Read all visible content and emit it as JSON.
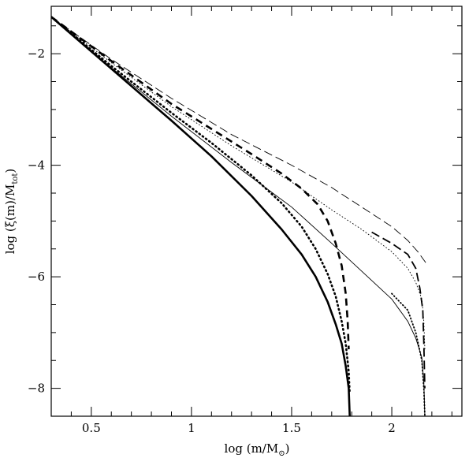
{
  "chart_data": {
    "type": "line",
    "xlabel_parts": {
      "pre": "log (m/M",
      "sub": "⊙",
      "post": ")"
    },
    "ylabel_parts": {
      "pre": "log (ξ(m)/M",
      "sub": "tot",
      "post": ")"
    },
    "xlim": [
      0.3,
      2.35
    ],
    "ylim": [
      -8.5,
      -1.15
    ],
    "x_ticks": [
      0.5,
      1,
      1.5,
      2
    ],
    "x_tick_labels": [
      "0.5",
      "1",
      "1.5",
      "2"
    ],
    "y_ticks": [
      -2,
      -4,
      -6,
      -8
    ],
    "y_tick_labels": [
      "−2",
      "−4",
      "−6",
      "−8"
    ],
    "x_minor_step": 0.1,
    "y_minor_step": 0.5,
    "grid": false,
    "series": [
      {
        "style": "solid",
        "weight": "thick",
        "points": [
          [
            0.3,
            -1.34
          ],
          [
            0.6,
            -2.27
          ],
          [
            0.9,
            -3.2
          ],
          [
            1.1,
            -3.84
          ],
          [
            1.3,
            -4.55
          ],
          [
            1.45,
            -5.15
          ],
          [
            1.55,
            -5.6
          ],
          [
            1.62,
            -6.0
          ],
          [
            1.68,
            -6.45
          ],
          [
            1.72,
            -6.85
          ],
          [
            1.75,
            -7.2
          ],
          [
            1.77,
            -7.6
          ],
          [
            1.785,
            -8.0
          ],
          [
            1.79,
            -8.5
          ]
        ]
      },
      {
        "style": "dotted",
        "weight": "thick",
        "points": [
          [
            0.3,
            -1.34
          ],
          [
            0.6,
            -2.22
          ],
          [
            0.9,
            -3.06
          ],
          [
            1.1,
            -3.6
          ],
          [
            1.3,
            -4.18
          ],
          [
            1.45,
            -4.68
          ],
          [
            1.55,
            -5.1
          ],
          [
            1.62,
            -5.5
          ],
          [
            1.68,
            -5.95
          ],
          [
            1.72,
            -6.35
          ],
          [
            1.75,
            -6.8
          ],
          [
            1.77,
            -7.2
          ],
          [
            1.785,
            -7.7
          ],
          [
            1.79,
            -8.1
          ]
        ]
      },
      {
        "style": "dashed",
        "weight": "thick",
        "points": [
          [
            0.3,
            -1.34
          ],
          [
            0.6,
            -2.13
          ],
          [
            0.9,
            -2.9
          ],
          [
            1.1,
            -3.35
          ],
          [
            1.3,
            -3.8
          ],
          [
            1.45,
            -4.15
          ],
          [
            1.55,
            -4.42
          ],
          [
            1.63,
            -4.7
          ],
          [
            1.68,
            -5.0
          ],
          [
            1.72,
            -5.4
          ],
          [
            1.75,
            -5.8
          ],
          [
            1.77,
            -6.3
          ],
          [
            1.78,
            -6.8
          ],
          [
            1.785,
            -7.3
          ]
        ]
      },
      {
        "style": "solid",
        "weight": "thin",
        "points": [
          [
            0.3,
            -1.34
          ],
          [
            0.6,
            -2.25
          ],
          [
            0.9,
            -3.12
          ],
          [
            1.2,
            -3.95
          ],
          [
            1.5,
            -4.75
          ],
          [
            1.7,
            -5.4
          ],
          [
            1.85,
            -5.9
          ],
          [
            2.0,
            -6.4
          ],
          [
            2.08,
            -6.8
          ],
          [
            2.12,
            -7.1
          ],
          [
            2.15,
            -7.45
          ],
          [
            2.16,
            -7.9
          ],
          [
            2.165,
            -8.5
          ]
        ]
      },
      {
        "style": "dotted",
        "weight": "thin",
        "points": [
          [
            0.3,
            -1.34
          ],
          [
            0.6,
            -2.16
          ],
          [
            0.9,
            -2.95
          ],
          [
            1.2,
            -3.65
          ],
          [
            1.5,
            -4.3
          ],
          [
            1.7,
            -4.8
          ],
          [
            1.85,
            -5.15
          ],
          [
            2.0,
            -5.55
          ],
          [
            2.08,
            -5.85
          ],
          [
            2.12,
            -6.1
          ],
          [
            2.15,
            -6.4
          ],
          [
            2.16,
            -6.8
          ],
          [
            2.165,
            -7.3
          ]
        ]
      },
      {
        "style": "dashed",
        "weight": "thin",
        "points": [
          [
            0.3,
            -1.34
          ],
          [
            0.6,
            -2.1
          ],
          [
            0.9,
            -2.8
          ],
          [
            1.2,
            -3.45
          ],
          [
            1.5,
            -4.0
          ],
          [
            1.7,
            -4.4
          ],
          [
            1.85,
            -4.75
          ],
          [
            2.0,
            -5.1
          ],
          [
            2.08,
            -5.35
          ],
          [
            2.13,
            -5.55
          ],
          [
            2.17,
            -5.75
          ]
        ]
      },
      {
        "style": "dashed",
        "weight": "medium",
        "points": [
          [
            1.9,
            -5.2
          ],
          [
            2.0,
            -5.4
          ],
          [
            2.08,
            -5.6
          ],
          [
            2.12,
            -5.85
          ],
          [
            2.14,
            -6.2
          ],
          [
            2.155,
            -6.6
          ],
          [
            2.16,
            -7.2
          ],
          [
            2.165,
            -8.0
          ]
        ]
      },
      {
        "style": "dotted",
        "weight": "medium",
        "points": [
          [
            2.0,
            -6.3
          ],
          [
            2.08,
            -6.6
          ],
          [
            2.12,
            -7.0
          ],
          [
            2.15,
            -7.5
          ],
          [
            2.16,
            -8.0
          ],
          [
            2.165,
            -8.5
          ]
        ]
      }
    ]
  }
}
